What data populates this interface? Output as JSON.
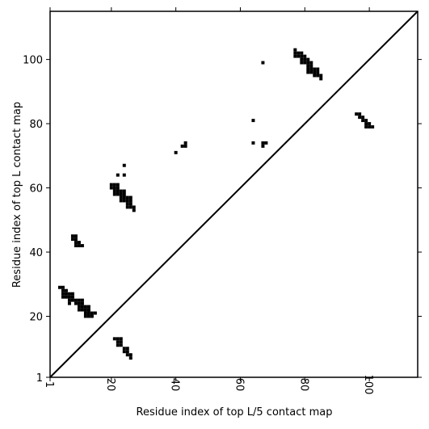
{
  "chart_data": {
    "type": "heatmap",
    "title": "",
    "xlabel": "Residue index of top L/5 contact map",
    "ylabel": "Residue index of top L contact map",
    "xlim": [
      1,
      115
    ],
    "ylim": [
      1,
      115
    ],
    "x_ticks": [
      "1",
      "20",
      "40",
      "60",
      "80",
      "100"
    ],
    "y_ticks": [
      "1",
      "20",
      "40",
      "60",
      "80",
      "100"
    ],
    "diagonal": true,
    "grid": false,
    "cell_color": "#000000",
    "contacts": [
      [
        4,
        29
      ],
      [
        5,
        29
      ],
      [
        5,
        28
      ],
      [
        6,
        28
      ],
      [
        5,
        27
      ],
      [
        6,
        27
      ],
      [
        7,
        27
      ],
      [
        8,
        27
      ],
      [
        5,
        26
      ],
      [
        6,
        26
      ],
      [
        7,
        26
      ],
      [
        8,
        26
      ],
      [
        7,
        25
      ],
      [
        8,
        25
      ],
      [
        9,
        25
      ],
      [
        10,
        25
      ],
      [
        11,
        25
      ],
      [
        7,
        24
      ],
      [
        9,
        24
      ],
      [
        10,
        24
      ],
      [
        11,
        24
      ],
      [
        10,
        23
      ],
      [
        11,
        23
      ],
      [
        12,
        23
      ],
      [
        13,
        23
      ],
      [
        10,
        22
      ],
      [
        11,
        22
      ],
      [
        12,
        22
      ],
      [
        13,
        22
      ],
      [
        12,
        21
      ],
      [
        13,
        21
      ],
      [
        14,
        21
      ],
      [
        15,
        21
      ],
      [
        12,
        20
      ],
      [
        13,
        20
      ],
      [
        14,
        20
      ],
      [
        8,
        45
      ],
      [
        9,
        45
      ],
      [
        8,
        44
      ],
      [
        9,
        44
      ],
      [
        9,
        43
      ],
      [
        10,
        43
      ],
      [
        9,
        42
      ],
      [
        10,
        42
      ],
      [
        11,
        42
      ],
      [
        20,
        61
      ],
      [
        21,
        61
      ],
      [
        22,
        61
      ],
      [
        20,
        60
      ],
      [
        21,
        60
      ],
      [
        22,
        60
      ],
      [
        21,
        59
      ],
      [
        22,
        59
      ],
      [
        23,
        59
      ],
      [
        24,
        59
      ],
      [
        21,
        58
      ],
      [
        22,
        58
      ],
      [
        23,
        58
      ],
      [
        24,
        58
      ],
      [
        23,
        57
      ],
      [
        24,
        57
      ],
      [
        25,
        57
      ],
      [
        26,
        57
      ],
      [
        23,
        56
      ],
      [
        24,
        56
      ],
      [
        25,
        56
      ],
      [
        26,
        56
      ],
      [
        25,
        55
      ],
      [
        26,
        55
      ],
      [
        25,
        54
      ],
      [
        26,
        54
      ],
      [
        27,
        54
      ],
      [
        27,
        53
      ],
      [
        22,
        64
      ],
      [
        24,
        64
      ],
      [
        24,
        67
      ],
      [
        21,
        13
      ],
      [
        22,
        13
      ],
      [
        23,
        13
      ],
      [
        22,
        12
      ],
      [
        23,
        12
      ],
      [
        22,
        11
      ],
      [
        23,
        11
      ],
      [
        24,
        10
      ],
      [
        25,
        10
      ],
      [
        24,
        9
      ],
      [
        25,
        9
      ],
      [
        25,
        8
      ],
      [
        26,
        8
      ],
      [
        26,
        7
      ],
      [
        40,
        71
      ],
      [
        42,
        73
      ],
      [
        43,
        73
      ],
      [
        43,
        74
      ],
      [
        64,
        81
      ],
      [
        64,
        74
      ],
      [
        67,
        74
      ],
      [
        68,
        74
      ],
      [
        67,
        73
      ],
      [
        67,
        99
      ],
      [
        77,
        103
      ],
      [
        77,
        102
      ],
      [
        78,
        102
      ],
      [
        79,
        102
      ],
      [
        77,
        101
      ],
      [
        78,
        101
      ],
      [
        79,
        101
      ],
      [
        80,
        101
      ],
      [
        79,
        100
      ],
      [
        80,
        100
      ],
      [
        81,
        100
      ],
      [
        79,
        99
      ],
      [
        80,
        99
      ],
      [
        81,
        99
      ],
      [
        82,
        99
      ],
      [
        81,
        98
      ],
      [
        82,
        98
      ],
      [
        81,
        97
      ],
      [
        82,
        97
      ],
      [
        83,
        97
      ],
      [
        84,
        97
      ],
      [
        81,
        96
      ],
      [
        82,
        96
      ],
      [
        83,
        96
      ],
      [
        84,
        96
      ],
      [
        83,
        95
      ],
      [
        84,
        95
      ],
      [
        85,
        95
      ],
      [
        85,
        94
      ],
      [
        96,
        83
      ],
      [
        97,
        83
      ],
      [
        97,
        82
      ],
      [
        98,
        82
      ],
      [
        98,
        81
      ],
      [
        99,
        81
      ],
      [
        99,
        80
      ],
      [
        100,
        80
      ],
      [
        99,
        79
      ],
      [
        100,
        79
      ],
      [
        101,
        79
      ]
    ]
  }
}
